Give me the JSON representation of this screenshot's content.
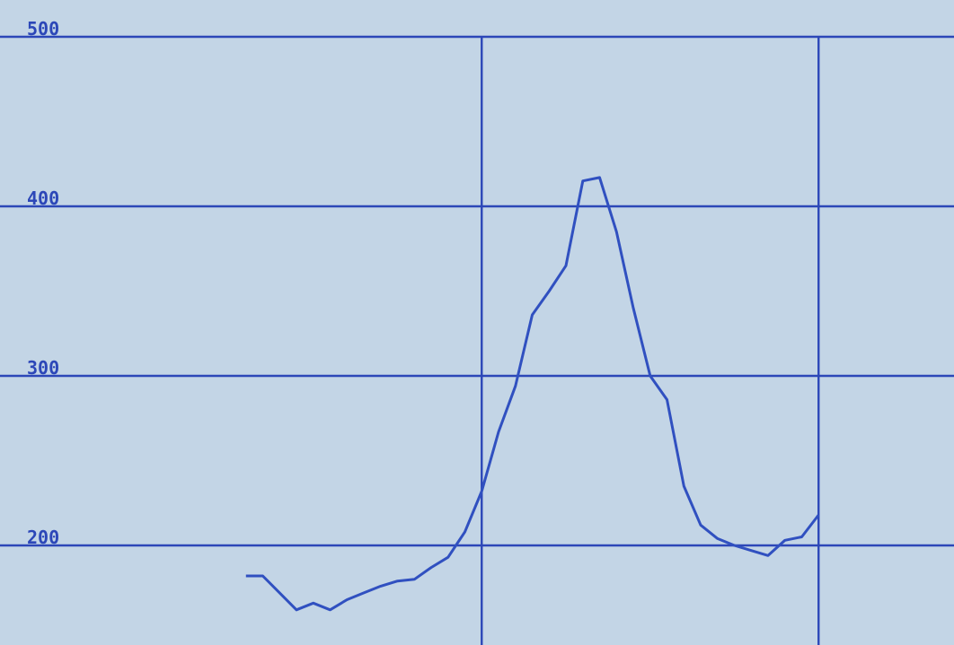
{
  "colors": {
    "background": "#c3d5e6",
    "grid": "#2c47b8",
    "line": "#3050c0",
    "tick_text": "#2c47b8"
  },
  "chart_data": {
    "type": "line",
    "title": "",
    "xlabel": "",
    "ylabel": "",
    "ylim": [
      150,
      520
    ],
    "xlim": [
      0,
      28.3
    ],
    "grid": true,
    "yticks": [
      "500",
      "400",
      "300",
      "200"
    ],
    "ytick_values": [
      500,
      400,
      300,
      200
    ],
    "xgrid_values": [
      14.3,
      24.3
    ],
    "x": [
      7.3,
      7.8,
      8.3,
      8.8,
      9.3,
      9.8,
      10.3,
      10.8,
      11.3,
      11.8,
      12.3,
      12.8,
      13.3,
      13.8,
      14.3,
      14.8,
      15.3,
      15.8,
      16.3,
      16.8,
      17.3,
      17.8,
      18.3,
      18.8,
      19.3,
      19.8,
      20.3,
      20.8,
      21.3,
      21.8,
      22.3,
      22.8,
      23.3,
      23.8,
      24.3
    ],
    "series": [
      {
        "values": [
          182,
          182,
          172,
          162,
          166,
          162,
          168,
          172,
          176,
          179,
          180,
          187,
          193,
          208,
          232,
          267,
          294,
          336,
          350,
          365,
          415,
          417,
          385,
          340,
          300,
          286,
          235,
          212,
          204,
          200,
          197,
          194,
          203,
          205,
          218
        ]
      }
    ]
  }
}
